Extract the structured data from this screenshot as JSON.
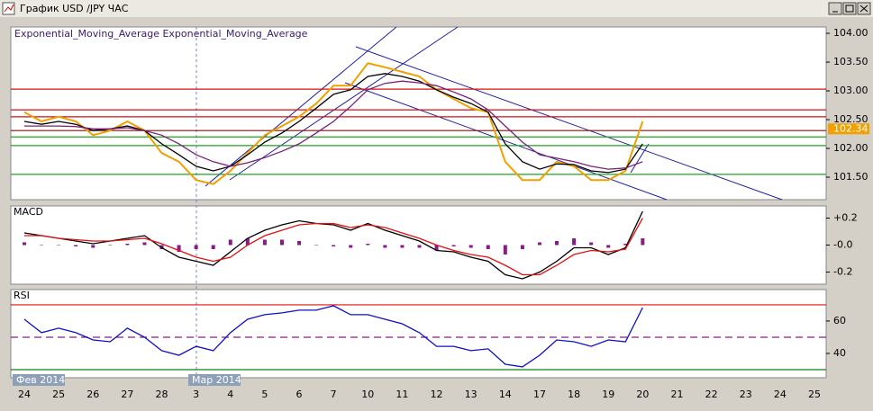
{
  "window": {
    "title": "График USD /JPY ЧАС"
  },
  "chart_data": [
    {
      "type": "line",
      "ylim": [
        101.11,
        104.11
      ],
      "yticks": [
        {
          "value": 101.5,
          "label": "101.50"
        },
        {
          "value": 102,
          "label": "102.00"
        },
        {
          "value": 102.5,
          "label": "102.50"
        },
        {
          "value": 103,
          "label": "103.00"
        },
        {
          "value": 103.5,
          "label": "103.50"
        },
        {
          "value": 104,
          "label": "104.00"
        }
      ],
      "hlines": [
        {
          "value": 103.03,
          "color": "#d01010"
        },
        {
          "value": 102.67,
          "color": "#d01010"
        },
        {
          "value": 102.55,
          "color": "#d01010"
        },
        {
          "value": 102.31,
          "color": "#7a1010"
        },
        {
          "value": 102.2,
          "color": "#20a020"
        },
        {
          "value": 102.05,
          "color": "#20a020"
        },
        {
          "value": 101.55,
          "color": "#20a020"
        }
      ],
      "last_value": 102.34,
      "series": [
        {
          "color": "#f0a000",
          "values": [
            102.63,
            102.47,
            102.55,
            102.47,
            102.23,
            102.31,
            102.47,
            102.31,
            101.92,
            101.77,
            101.45,
            101.38,
            101.61,
            101.92,
            102.23,
            102.39,
            102.55,
            102.78,
            103.09,
            103.09,
            103.48,
            103.41,
            103.33,
            103.25,
            103.02,
            102.86,
            102.7,
            102.63,
            101.77,
            101.45,
            101.45,
            101.77,
            101.69,
            101.45,
            101.45,
            101.61,
            102.47,
            null,
            null,
            null,
            null,
            null,
            null,
            null,
            null,
            null,
            null
          ]
        },
        {
          "name": "Exponential_Moving_Average",
          "color": "#000000",
          "values": [
            102.47,
            102.42,
            102.47,
            102.42,
            102.31,
            102.34,
            102.39,
            102.31,
            102.08,
            101.89,
            101.69,
            101.61,
            101.69,
            101.89,
            102.11,
            102.27,
            102.47,
            102.7,
            102.94,
            103.02,
            103.25,
            103.3,
            103.25,
            103.17,
            103.02,
            102.89,
            102.78,
            102.63,
            102.08,
            101.77,
            101.64,
            101.73,
            101.72,
            101.61,
            101.58,
            101.64,
            102.08,
            null,
            null,
            null,
            null,
            null,
            null,
            null,
            null,
            null,
            null
          ]
        },
        {
          "name": "Exponential_Moving_Average",
          "color": "#7b1f7b",
          "values": [
            102.39,
            102.39,
            102.39,
            102.38,
            102.34,
            102.34,
            102.36,
            102.31,
            102.23,
            102.08,
            101.89,
            101.77,
            101.69,
            101.75,
            101.84,
            101.95,
            102.08,
            102.27,
            102.47,
            102.73,
            103.02,
            103.13,
            103.17,
            103.14,
            103.09,
            102.98,
            102.86,
            102.67,
            102.39,
            102.11,
            101.89,
            101.83,
            101.77,
            101.69,
            101.64,
            101.66,
            101.77,
            null,
            null,
            null,
            null,
            null,
            null,
            null,
            null,
            null,
            null
          ]
        }
      ]
    },
    {
      "type": "line",
      "title": "MACD",
      "ylim": [
        -0.29,
        0.29
      ],
      "yticks": [
        {
          "value": 0.2,
          "label": "+0.2"
        },
        {
          "value": 0,
          "label": "-0.0"
        },
        -0.2
      ],
      "series": [
        {
          "color": "#8a1a8a",
          "style": "histogram",
          "values": [
            0.02,
            0,
            0,
            -0.01,
            -0.02,
            0,
            0.01,
            0.02,
            -0.03,
            -0.05,
            -0.03,
            -0.03,
            0.04,
            0.05,
            0.04,
            0.04,
            0.03,
            0,
            -0.01,
            -0.02,
            0.01,
            -0.02,
            -0.02,
            -0.02,
            -0.04,
            -0.01,
            -0.02,
            -0.03,
            -0.07,
            -0.03,
            0.02,
            0.03,
            0.05,
            0.02,
            -0.02,
            0.01,
            0.05,
            null,
            null,
            null,
            null,
            null,
            null,
            null,
            null,
            null,
            null
          ]
        },
        {
          "color": "#000000",
          "values": [
            0.09,
            0.07,
            0.05,
            0.03,
            0.01,
            0.03,
            0.05,
            0.07,
            -0.02,
            -0.09,
            -0.12,
            -0.15,
            -0.05,
            0.05,
            0.11,
            0.15,
            0.18,
            0.16,
            0.15,
            0.11,
            0.16,
            0.11,
            0.07,
            0.03,
            -0.04,
            -0.05,
            -0.09,
            -0.12,
            -0.22,
            -0.25,
            -0.2,
            -0.12,
            -0.02,
            -0.02,
            -0.07,
            -0.02,
            0.25,
            null,
            null,
            null,
            null,
            null,
            null,
            null,
            null,
            null,
            null
          ]
        },
        {
          "color": "#e01010",
          "values": [
            0.07,
            0.07,
            0.05,
            0.04,
            0.03,
            0.03,
            0.04,
            0.05,
            0.01,
            -0.04,
            -0.09,
            -0.12,
            -0.09,
            0,
            0.07,
            0.11,
            0.15,
            0.16,
            0.16,
            0.13,
            0.15,
            0.13,
            0.09,
            0.05,
            0,
            -0.04,
            -0.07,
            -0.09,
            -0.15,
            -0.22,
            -0.22,
            -0.15,
            -0.07,
            -0.04,
            -0.05,
            -0.03,
            0.2,
            null,
            null,
            null,
            null,
            null,
            null,
            null,
            null,
            null,
            null
          ]
        }
      ]
    },
    {
      "type": "line",
      "title": "RSI",
      "ylim": [
        25,
        79.4
      ],
      "yticks": [
        40,
        60
      ],
      "hlines": [
        {
          "value": 70,
          "color": "#e01010"
        },
        {
          "value": 50,
          "color": "#8a1a8a",
          "dashed": true
        },
        {
          "value": 30,
          "color": "#108010"
        }
      ],
      "categories": [
        "24",
        null,
        "25",
        null,
        "26",
        null,
        "27",
        null,
        "28",
        null,
        "3",
        null,
        "4",
        null,
        "5",
        null,
        "6",
        null,
        "7",
        null,
        "10",
        null,
        "11",
        null,
        "12",
        null,
        "13",
        null,
        "14",
        null,
        "17",
        null,
        "18",
        null,
        "19",
        null,
        "20",
        null,
        "21",
        null,
        "22",
        null,
        "23",
        null,
        "24",
        null,
        "25"
      ],
      "x_periods": [
        "Фев 2014",
        "Мар 2014"
      ],
      "series": [
        {
          "color": "#1010c0",
          "values": [
            61.1,
            52.8,
            55.6,
            52.8,
            48.3,
            47.2,
            55.6,
            50,
            41.7,
            38.9,
            44.4,
            41.7,
            52.8,
            61.1,
            63.9,
            65,
            66.7,
            66.7,
            69.4,
            63.9,
            63.9,
            61.1,
            58.3,
            52.8,
            44.4,
            44.4,
            41.7,
            42.8,
            33.3,
            31.7,
            38.9,
            48.3,
            47.2,
            44.4,
            48.3,
            47.2,
            68.3,
            null,
            null,
            null,
            null,
            null,
            null,
            null,
            null,
            null,
            null
          ]
        }
      ]
    }
  ]
}
